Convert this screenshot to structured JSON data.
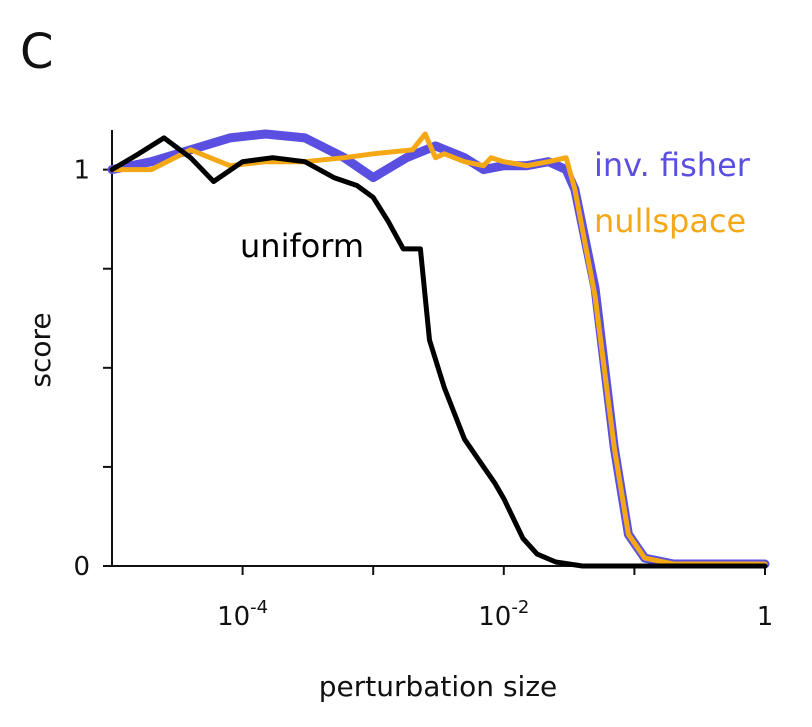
{
  "panel_label": "C",
  "chart_data": {
    "type": "line",
    "xlabel": "perturbation size",
    "ylabel": "score",
    "x_scale": "log",
    "xlim": [
      1e-05,
      1
    ],
    "ylim": [
      0,
      1.1
    ],
    "x_ticks_major": [
      {
        "value": 0.0001,
        "base": "10",
        "exp": "-4"
      },
      {
        "value": 0.01,
        "base": "10",
        "exp": "-2"
      },
      {
        "value": 1,
        "base": "1",
        "exp": ""
      }
    ],
    "x_ticks_minor": [
      0.001,
      0.1
    ],
    "y_ticks_labeled": [
      {
        "value": 0,
        "label": "0"
      },
      {
        "value": 1,
        "label": "1"
      }
    ],
    "y_ticks_minor": [
      0.25,
      0.5,
      0.75
    ],
    "grid": false,
    "series": [
      {
        "name": "inv. fisher",
        "color": "#5a4fe0",
        "label_color": "#5a4fe0",
        "x": [
          1e-05,
          2e-05,
          4e-05,
          8e-05,
          0.00015,
          0.0003,
          0.0006,
          0.001,
          0.0018,
          0.003,
          0.005,
          0.007,
          0.01,
          0.015,
          0.022,
          0.03,
          0.035,
          0.05,
          0.07,
          0.09,
          0.12,
          0.2,
          0.5,
          1
        ],
        "y": [
          1.0,
          1.02,
          1.05,
          1.08,
          1.09,
          1.08,
          1.03,
          0.98,
          1.03,
          1.06,
          1.03,
          1.0,
          1.01,
          1.01,
          1.02,
          1.0,
          0.95,
          0.7,
          0.3,
          0.08,
          0.02,
          0.005,
          0.005,
          0.005
        ]
      },
      {
        "name": "nullspace",
        "color": "#f5a816",
        "label_color": "#f5a816",
        "x": [
          1e-05,
          2e-05,
          4e-05,
          8e-05,
          0.00015,
          0.0003,
          0.0006,
          0.001,
          0.002,
          0.0025,
          0.003,
          0.0035,
          0.005,
          0.007,
          0.008,
          0.01,
          0.015,
          0.022,
          0.03,
          0.035,
          0.05,
          0.07,
          0.09,
          0.12,
          0.2,
          0.5,
          1
        ],
        "y": [
          1.0,
          1.0,
          1.05,
          1.01,
          1.02,
          1.02,
          1.03,
          1.04,
          1.05,
          1.09,
          1.03,
          1.04,
          1.02,
          1.01,
          1.03,
          1.02,
          1.01,
          1.02,
          1.03,
          0.95,
          0.68,
          0.3,
          0.08,
          0.02,
          0.005,
          0.005,
          0.005
        ]
      },
      {
        "name": "uniform",
        "color": "#000000",
        "label_color": "#000000",
        "x": [
          1e-05,
          1.6e-05,
          2.5e-05,
          4e-05,
          6e-05,
          0.0001,
          0.00017,
          0.0003,
          0.0005,
          0.00075,
          0.001,
          0.0013,
          0.0017,
          0.0023,
          0.0027,
          0.0035,
          0.005,
          0.007,
          0.0085,
          0.01,
          0.014,
          0.018,
          0.025,
          0.04,
          0.07,
          0.1,
          0.2,
          0.5,
          1
        ],
        "y": [
          1.0,
          1.04,
          1.08,
          1.03,
          0.97,
          1.02,
          1.03,
          1.02,
          0.98,
          0.96,
          0.93,
          0.87,
          0.8,
          0.8,
          0.57,
          0.45,
          0.32,
          0.25,
          0.21,
          0.17,
          0.07,
          0.03,
          0.01,
          0.0,
          0.0,
          0.0,
          0.0,
          0.0,
          0.0
        ]
      }
    ]
  }
}
